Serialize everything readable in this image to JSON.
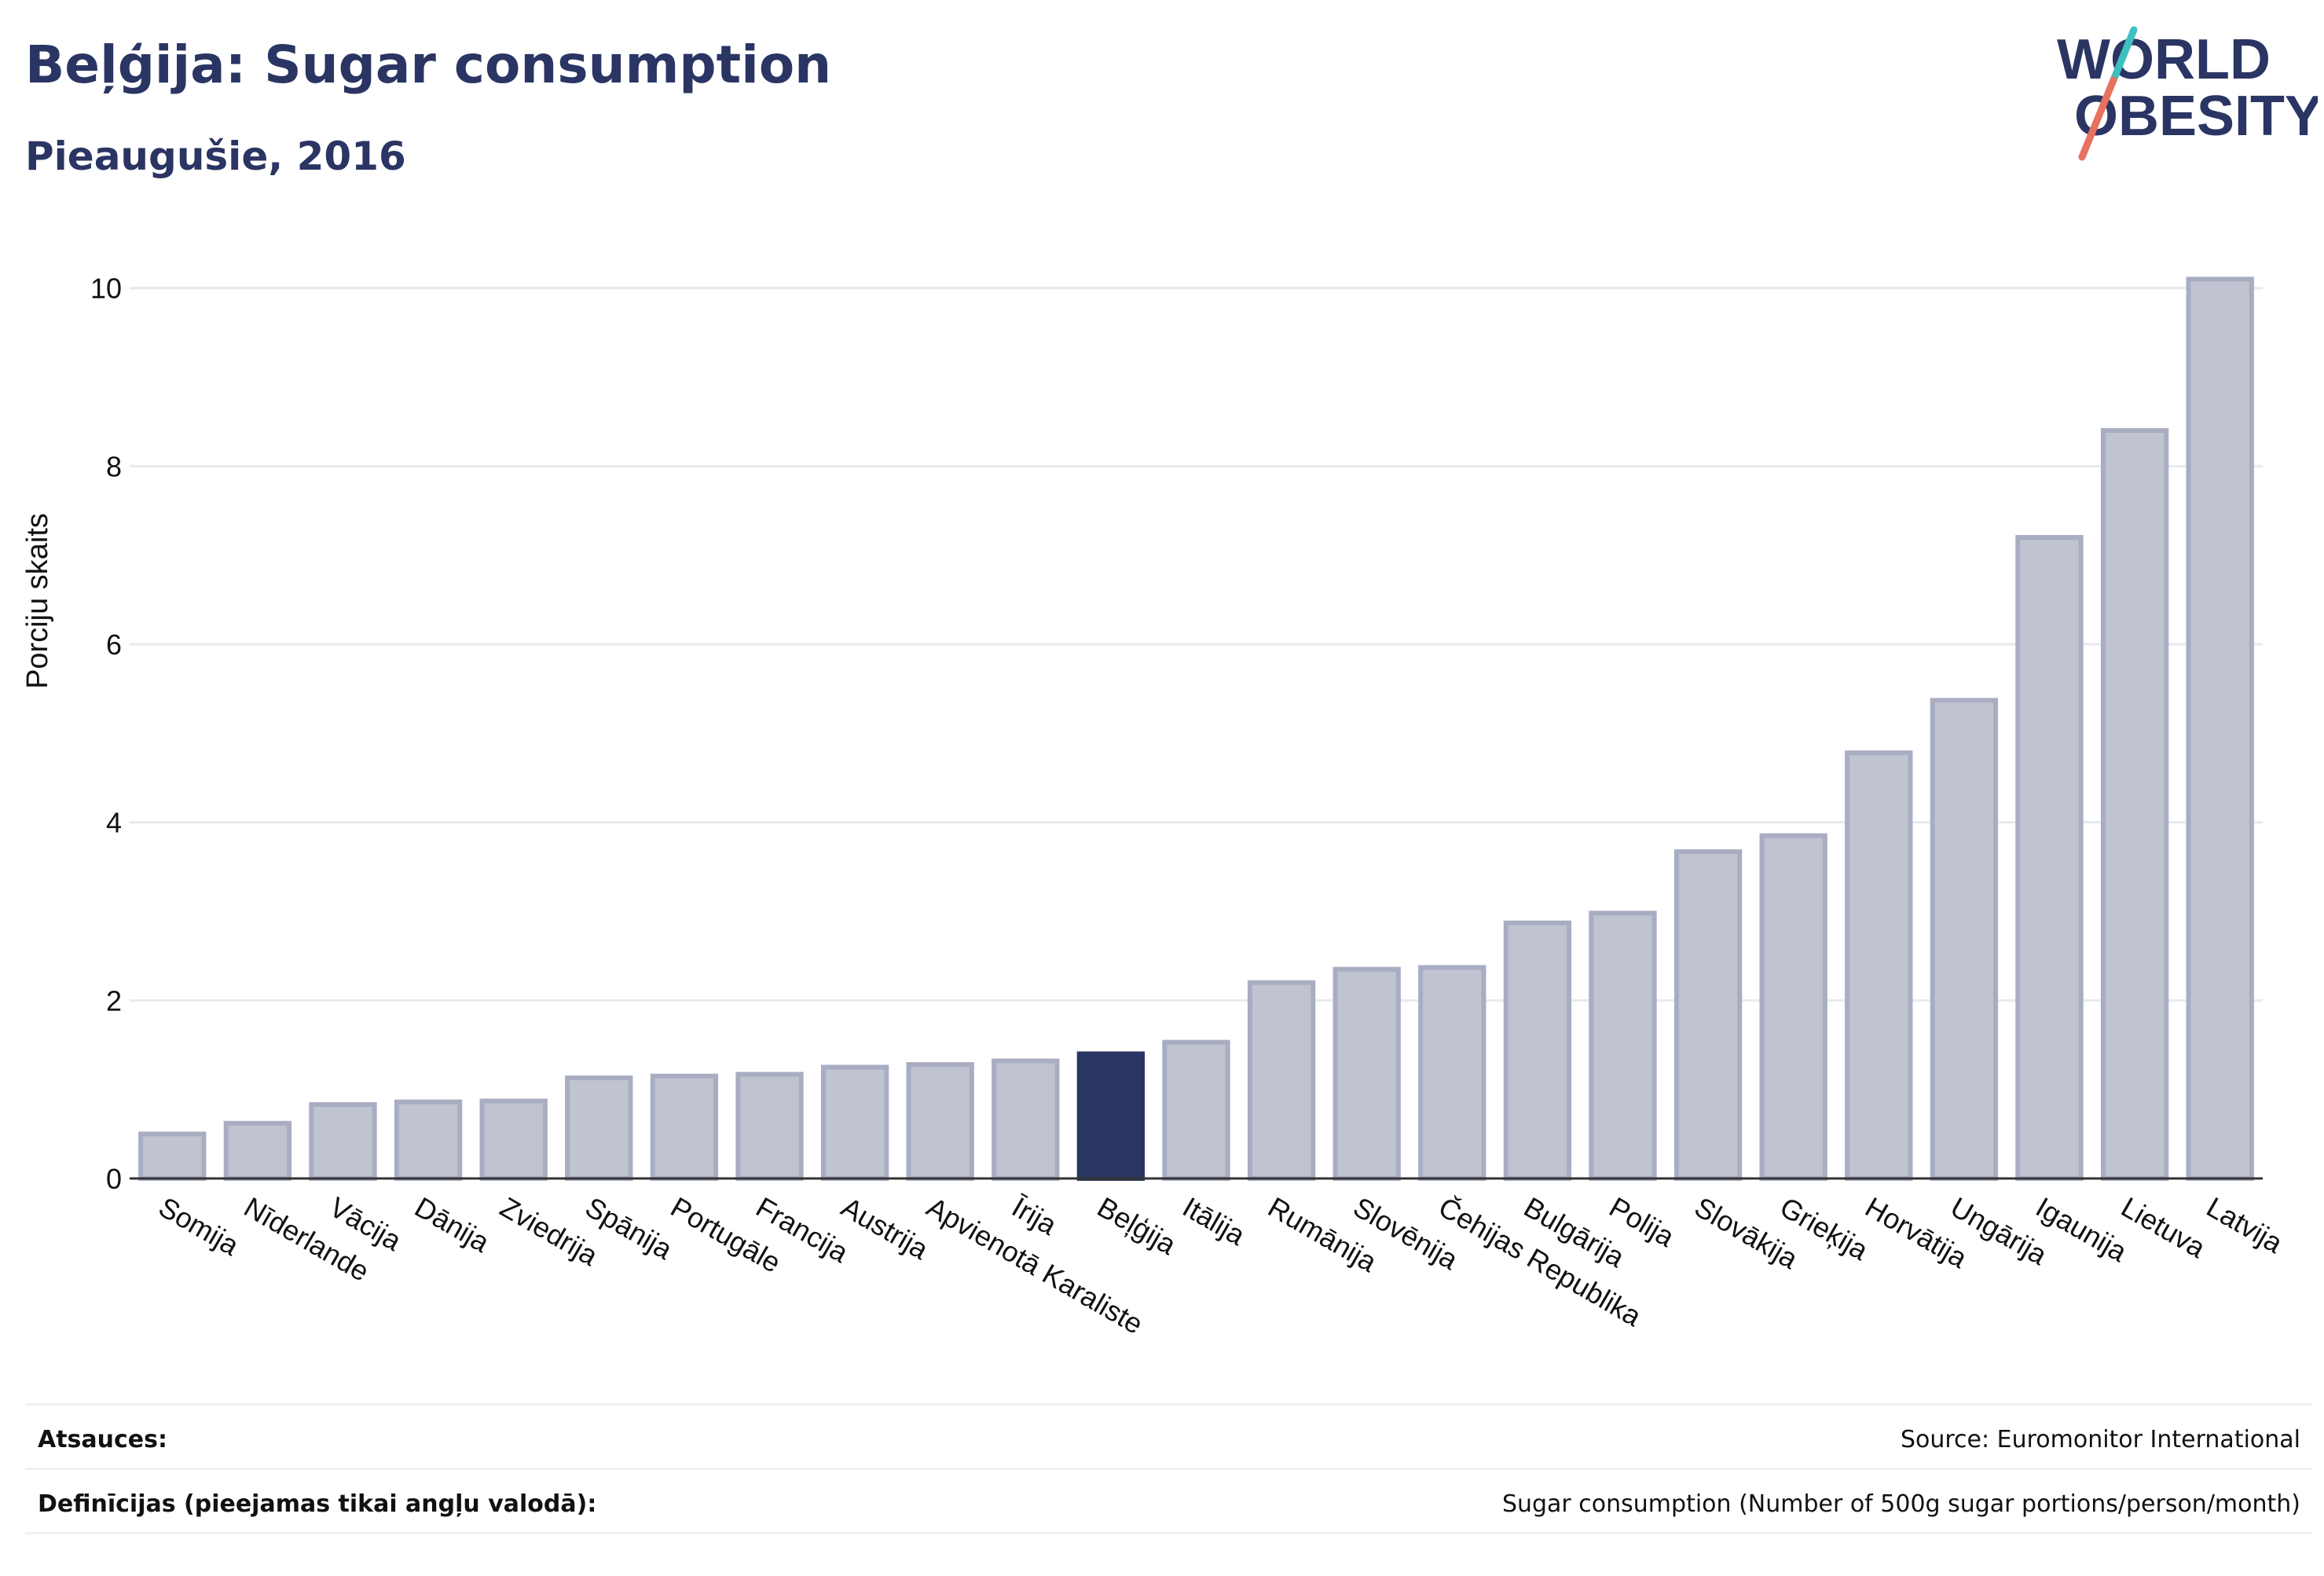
{
  "header": {
    "title": "Beļģija: Sugar consumption",
    "subtitle": "Pieaugušie, 2016"
  },
  "logo": {
    "line1": "WORLD",
    "line2": "OBESITY"
  },
  "colors": {
    "bar": "#c0c3d0",
    "bar_stroke": "#a9adc2",
    "highlight": "#2a3563",
    "grid": "#e8e9ef",
    "text": "#2a3563",
    "logo_teal": "#3fbfbf",
    "logo_coral": "#e8705f"
  },
  "chart_data": {
    "type": "bar",
    "ylabel": "Porciju skaits",
    "ylim": [
      0,
      10.5
    ],
    "yticks": [
      0,
      2,
      4,
      6,
      8,
      10
    ],
    "grid": true,
    "highlight": "Beļģija",
    "categories": [
      "Somija",
      "Nīderlande",
      "Vācija",
      "Dānija",
      "Zviedrija",
      "Spānija",
      "Portugāle",
      "Francija",
      "Austrija",
      "Apvienotā Karaliste",
      "Īrija",
      "Beļģija",
      "Itālija",
      "Rumānija",
      "Slovēnija",
      "Čehijas Republika",
      "Bulgārija",
      "Polija",
      "Slovākija",
      "Grieķija",
      "Horvātija",
      "Ungārija",
      "Igaunija",
      "Lietuva",
      "Latvija"
    ],
    "values": [
      0.5,
      0.62,
      0.83,
      0.86,
      0.87,
      1.13,
      1.15,
      1.17,
      1.25,
      1.28,
      1.32,
      1.4,
      1.53,
      2.2,
      2.35,
      2.37,
      2.87,
      2.98,
      3.67,
      3.85,
      4.78,
      5.37,
      7.2,
      8.4,
      10.1
    ]
  },
  "footer": {
    "sources_label": "Atsauces:",
    "sources_value": "Source: Euromonitor International",
    "definitions_label": "Definīcijas (pieejamas tikai angļu valodā):",
    "definitions_value": "Sugar consumption (Number of 500g sugar portions/person/month)"
  }
}
